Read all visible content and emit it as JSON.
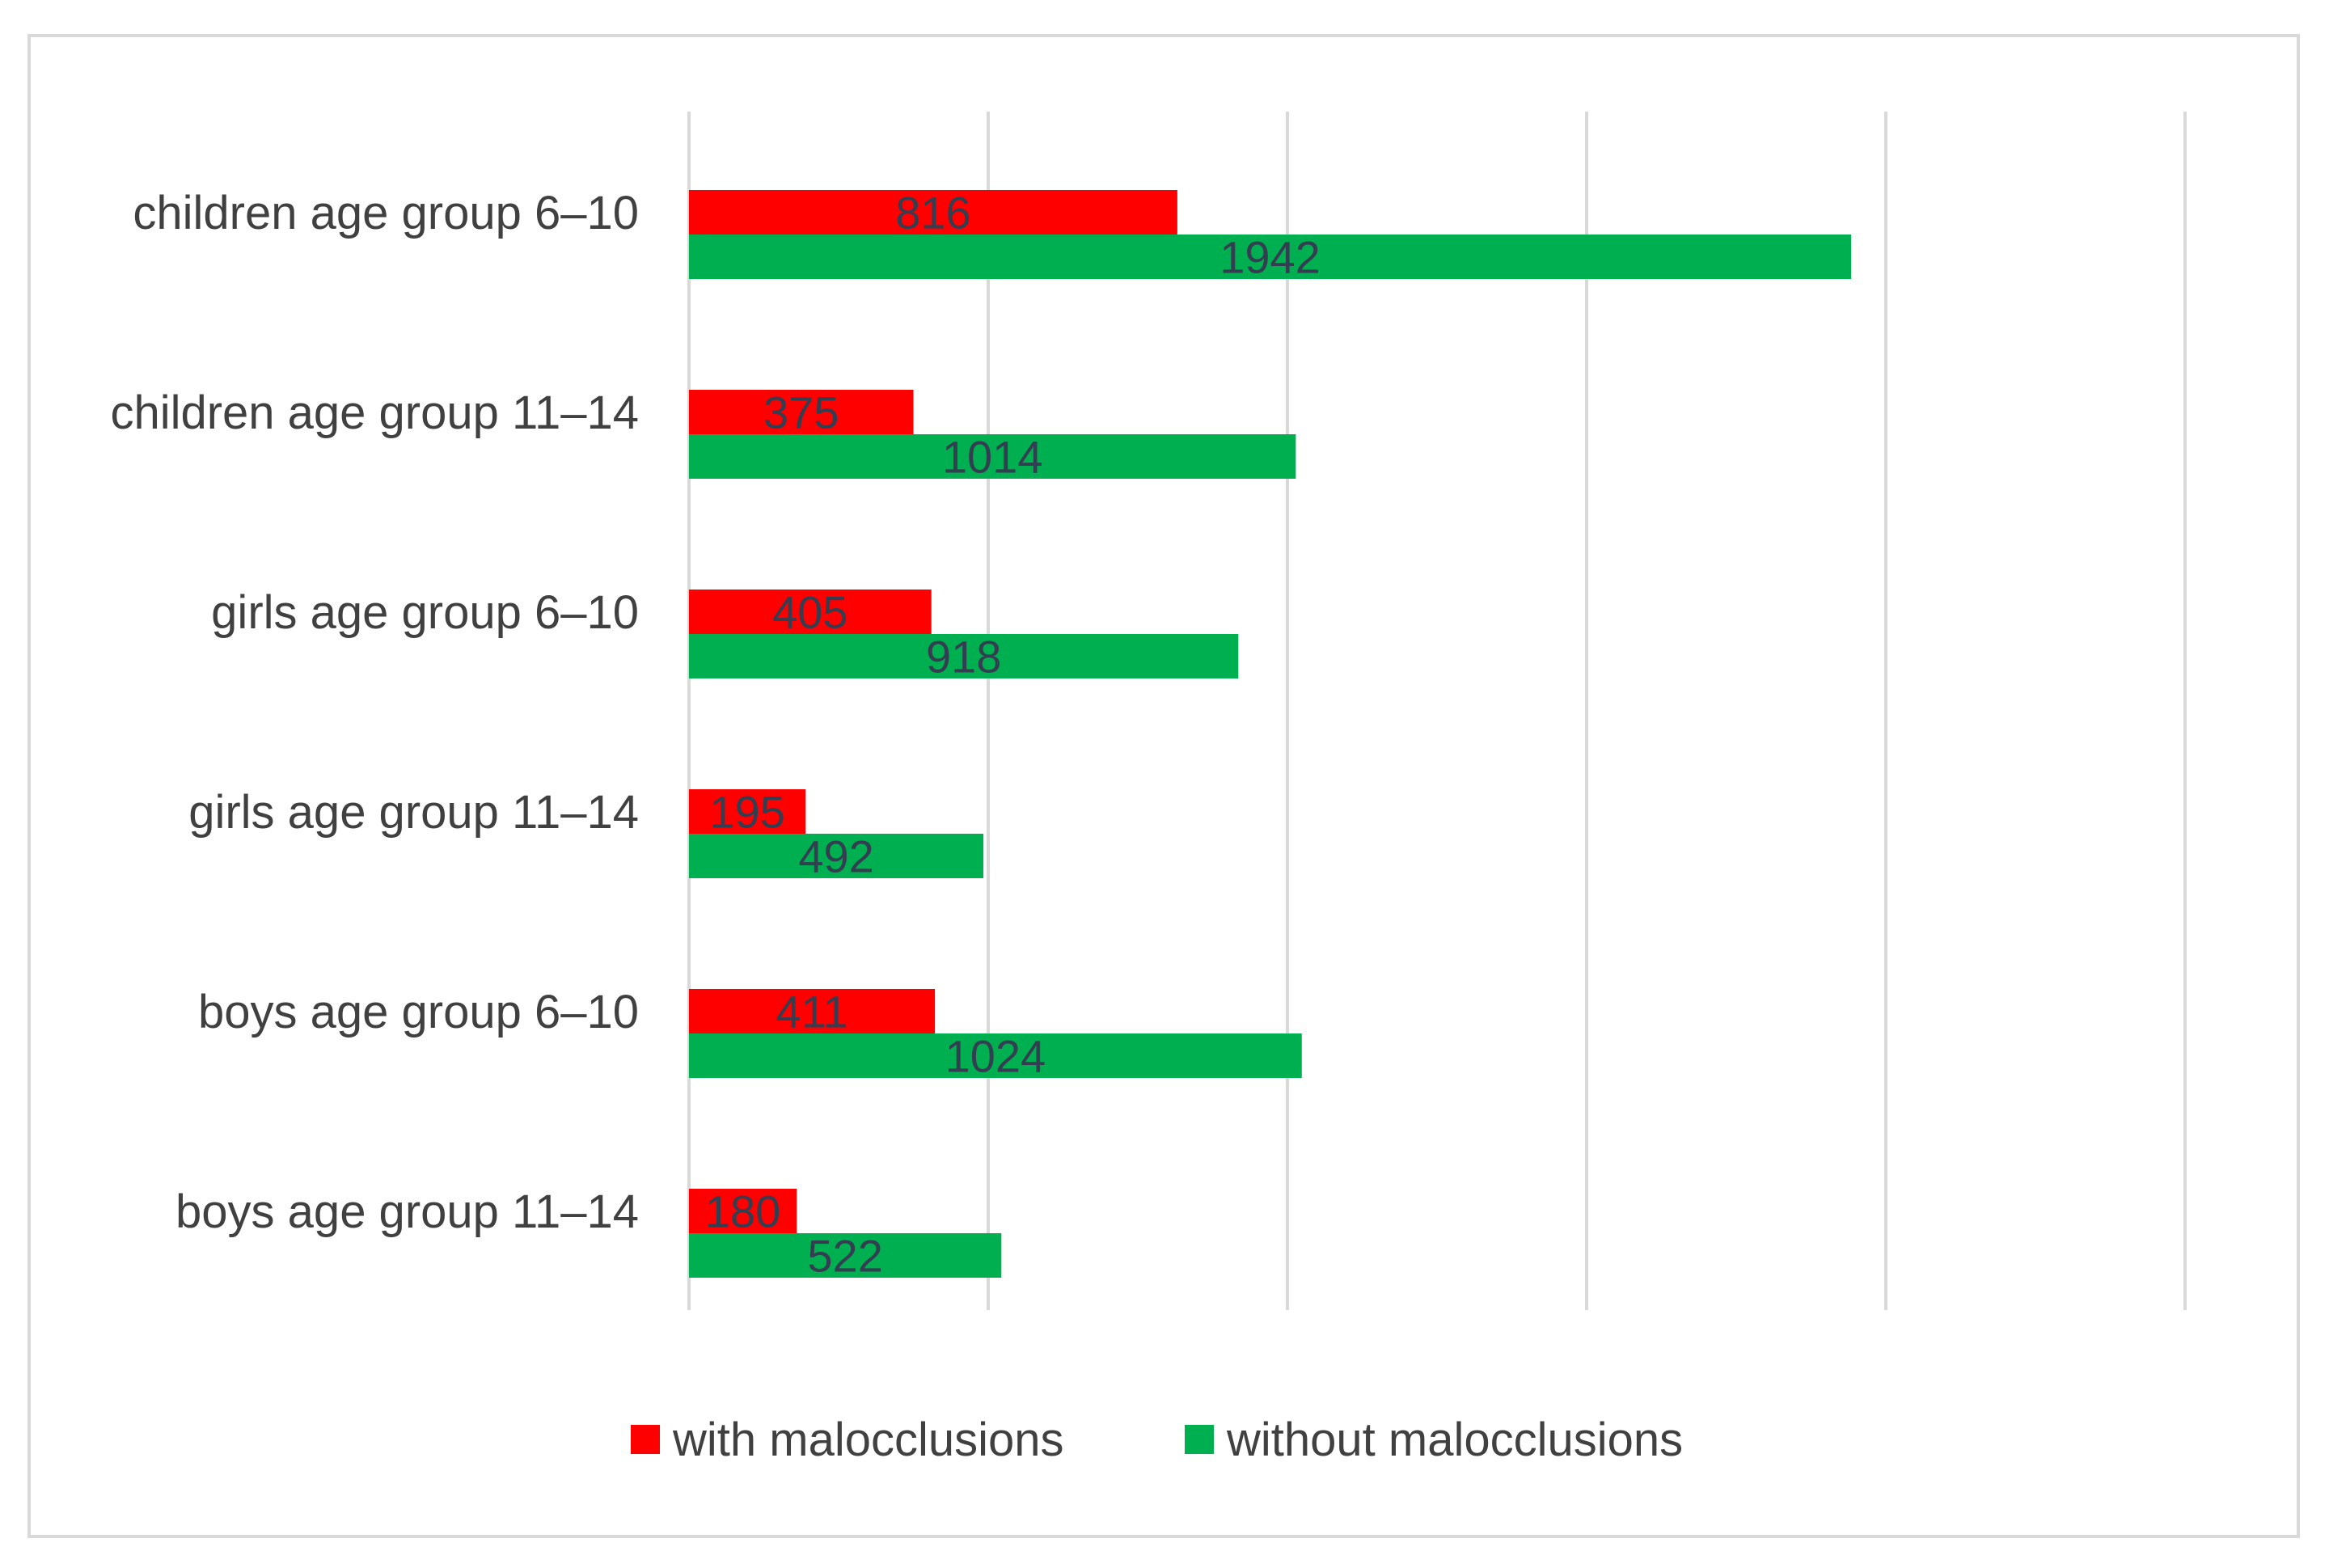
{
  "chart_data": {
    "type": "bar",
    "orientation": "horizontal",
    "categories": [
      "children age group 6–10",
      "children age group 11–14",
      "girls age group 6–10",
      "girls age group 11–14",
      "boys age group 6–10",
      "boys age group 11–14"
    ],
    "series": [
      {
        "name": "with malocclusions",
        "color": "#ff0000",
        "values": [
          816,
          375,
          405,
          195,
          411,
          180
        ]
      },
      {
        "name": "without malocclusions",
        "color": "#00b050",
        "values": [
          1942,
          1014,
          918,
          492,
          1024,
          522
        ]
      }
    ],
    "xlim": [
      0,
      2500
    ],
    "x_gridlines": [
      0,
      500,
      1000,
      1500,
      2000,
      2500
    ],
    "grid": true,
    "axis_tick_labels_shown": false,
    "data_labels": true,
    "legend_position": "bottom",
    "title": "",
    "xlabel": "",
    "ylabel": ""
  }
}
